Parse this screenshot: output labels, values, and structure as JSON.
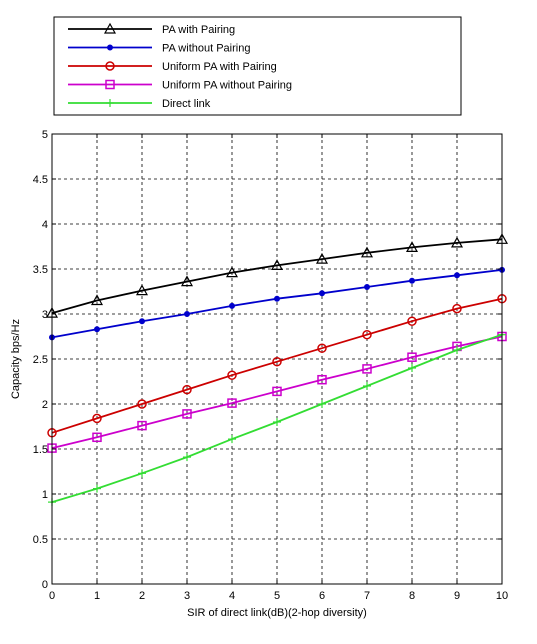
{
  "chart_data": {
    "type": "line",
    "xlabel": "SIR of direct link(dB)(2-hop diversity)",
    "ylabel": "Capacity bps/Hz",
    "xlim": [
      0,
      10
    ],
    "ylim": [
      0,
      5
    ],
    "x_ticks": [
      "0",
      "1",
      "2",
      "3",
      "4",
      "5",
      "6",
      "7",
      "8",
      "9",
      "10"
    ],
    "y_ticks": [
      "0",
      "0.5",
      "1",
      "1.5",
      "2",
      "2.5",
      "3",
      "3.5",
      "4",
      "4.5",
      "5"
    ],
    "grid": true,
    "legend_position": "top, outside plot area",
    "x": [
      0,
      1,
      2,
      3,
      4,
      5,
      6,
      7,
      8,
      9,
      10
    ],
    "series": [
      {
        "name": "PA with Pairing",
        "color": "#000000",
        "marker": "triangle",
        "values": [
          3.01,
          3.15,
          3.26,
          3.36,
          3.46,
          3.54,
          3.61,
          3.68,
          3.74,
          3.79,
          3.83
        ]
      },
      {
        "name": "PA without Pairing",
        "color": "#0000cc",
        "marker": "dot",
        "values": [
          2.74,
          2.83,
          2.92,
          3.0,
          3.09,
          3.17,
          3.23,
          3.3,
          3.37,
          3.43,
          3.49
        ]
      },
      {
        "name": "Uniform PA with Pairing",
        "color": "#cc0000",
        "marker": "circle",
        "values": [
          1.68,
          1.84,
          2.0,
          2.16,
          2.32,
          2.47,
          2.62,
          2.77,
          2.92,
          3.06,
          3.17
        ]
      },
      {
        "name": "Uniform PA without Pairing",
        "color": "#cc00cc",
        "marker": "square",
        "values": [
          1.51,
          1.63,
          1.76,
          1.89,
          2.01,
          2.14,
          2.27,
          2.39,
          2.52,
          2.64,
          2.75
        ]
      },
      {
        "name": "Direct link",
        "color": "#33dd33",
        "marker": "plus",
        "values": [
          0.91,
          1.06,
          1.23,
          1.41,
          1.61,
          1.8,
          2.0,
          2.2,
          2.4,
          2.6,
          2.77
        ]
      }
    ]
  }
}
